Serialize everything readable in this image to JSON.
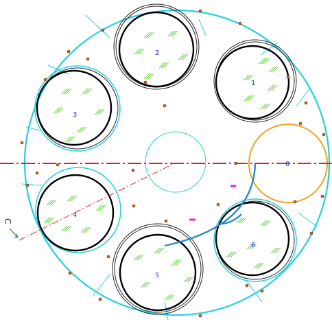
{
  "drawing": {
    "slot_labels": [
      "1",
      "2",
      "3",
      "4",
      "5",
      "6"
    ],
    "port_label": "0",
    "section_marker": "C"
  },
  "colors": {
    "outline": "#22d0e0",
    "slot_circle": "#000000",
    "label": "#1f2fd6",
    "hatch": "#6fd34a",
    "centerline": "#e0241c",
    "port": "#f0a020",
    "arc": "#2a8ac8",
    "bolt": "#d4601a",
    "magenta": "#e020e0",
    "marker": "#2a8a3a"
  },
  "icons": {
    "bolt": "bolt-hole-icon",
    "hatch": "hatch-icon",
    "marker": "section-arrow-icon"
  }
}
